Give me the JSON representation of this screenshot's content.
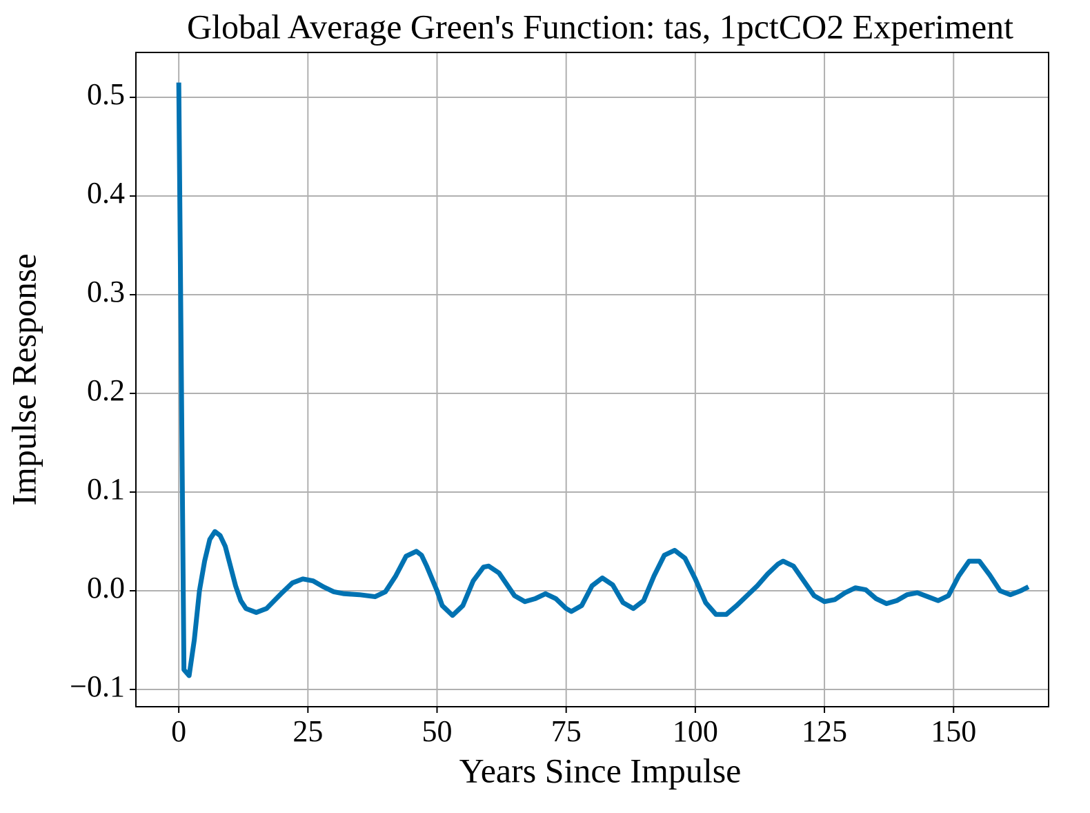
{
  "chart_data": {
    "type": "line",
    "title": "Global Average Green's Function: tas, 1pctCO2 Experiment",
    "x_label": "Years Since Impulse",
    "y_label": "Impulse Response",
    "x": [
      0,
      1,
      2,
      3,
      4,
      5,
      6,
      7,
      8,
      9,
      10,
      11,
      12,
      13,
      15,
      17,
      20,
      22,
      24,
      26,
      28,
      30,
      32,
      35,
      38,
      40,
      42,
      44,
      46,
      47,
      48,
      50,
      51,
      53,
      55,
      57,
      59,
      60,
      62,
      65,
      67,
      69,
      71,
      73,
      75,
      76,
      78,
      80,
      82,
      84,
      86,
      88,
      90,
      92,
      94,
      96,
      98,
      100,
      102,
      104,
      106,
      108,
      110,
      112,
      114,
      116,
      117,
      119,
      121,
      123,
      125,
      127,
      129,
      131,
      133,
      135,
      137,
      139,
      141,
      143,
      145,
      147,
      149,
      151,
      153,
      155,
      157,
      159,
      161,
      163,
      164.5
    ],
    "values": [
      0.515,
      -0.08,
      -0.086,
      -0.05,
      0.0,
      0.03,
      0.052,
      0.06,
      0.056,
      0.045,
      0.025,
      0.005,
      -0.01,
      -0.018,
      -0.022,
      -0.018,
      -0.002,
      0.008,
      0.012,
      0.01,
      0.004,
      -0.001,
      -0.003,
      -0.004,
      -0.006,
      -0.001,
      0.015,
      0.035,
      0.04,
      0.036,
      0.025,
      0.0,
      -0.015,
      -0.025,
      -0.015,
      0.01,
      0.024,
      0.025,
      0.018,
      -0.005,
      -0.011,
      -0.008,
      -0.003,
      -0.008,
      -0.018,
      -0.021,
      -0.015,
      0.005,
      0.013,
      0.006,
      -0.012,
      -0.018,
      -0.01,
      0.015,
      0.036,
      0.041,
      0.033,
      0.012,
      -0.012,
      -0.024,
      -0.024,
      -0.015,
      -0.005,
      0.005,
      0.017,
      0.027,
      0.03,
      0.025,
      0.01,
      -0.005,
      -0.011,
      -0.009,
      -0.002,
      0.003,
      0.001,
      -0.008,
      -0.013,
      -0.01,
      -0.004,
      -0.002,
      -0.006,
      -0.01,
      -0.005,
      0.015,
      0.03,
      0.03,
      0.016,
      0.0,
      -0.004,
      0.0,
      0.004
    ],
    "color": "#0072b2",
    "xlim": [
      -8.3,
      168.4
    ],
    "ylim": [
      -0.1175,
      0.5455
    ],
    "xticks": [
      0,
      25,
      50,
      75,
      100,
      125,
      150
    ],
    "yticks": [
      {
        "value": -0.1,
        "label": "−0.1"
      },
      {
        "value": 0,
        "label": "0.0"
      },
      0.1,
      0.2,
      0.3,
      0.4,
      0.5
    ],
    "grid": true
  }
}
